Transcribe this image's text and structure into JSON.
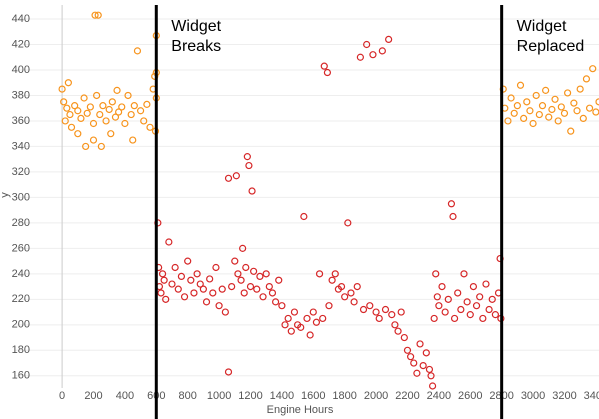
{
  "chart_data": {
    "type": "scatter",
    "x_label": "Engine Hours",
    "y_label": "y",
    "xlim": [
      -300,
      3420
    ],
    "ylim": [
      141,
      451
    ],
    "xticks": [
      0,
      200,
      400,
      600,
      800,
      1000,
      1200,
      1400,
      1600,
      1800,
      2000,
      2200,
      2400,
      2600,
      2800,
      3000,
      3200,
      3400
    ],
    "yticks": [
      160,
      180,
      200,
      220,
      240,
      260,
      280,
      300,
      320,
      340,
      360,
      380,
      400,
      420,
      440
    ],
    "grid": true,
    "annotations": [
      {
        "x": 600,
        "text": [
          "Widget",
          "Breaks"
        ]
      },
      {
        "x": 2800,
        "text": [
          "Widget",
          "Replaced"
        ]
      }
    ],
    "series": [
      {
        "color": "#f7941d",
        "x": [
          0,
          10,
          20,
          30,
          40,
          50,
          60,
          80,
          100,
          100,
          120,
          140,
          150,
          160,
          180,
          200,
          200,
          210,
          220,
          230,
          240,
          250,
          260,
          280,
          300,
          310,
          320,
          340,
          350,
          360,
          380,
          400,
          420,
          440,
          450,
          460,
          480,
          500,
          520,
          540,
          560,
          580,
          590,
          600,
          600,
          600,
          595,
          2810,
          2820,
          2840,
          2860,
          2880,
          2900,
          2920,
          2940,
          2960,
          2980,
          3000,
          3020,
          3040,
          3060,
          3080,
          3100,
          3120,
          3140,
          3160,
          3180,
          3200,
          3220,
          3240,
          3260,
          3280,
          3300,
          3320,
          3340,
          3360,
          3380,
          3400,
          3420
        ],
        "values": [
          385,
          375,
          360,
          370,
          390,
          365,
          355,
          372,
          368,
          350,
          362,
          378,
          340,
          366,
          371,
          358,
          345,
          443,
          380,
          443,
          365,
          340,
          372,
          360,
          369,
          350,
          375,
          363,
          384,
          367,
          371,
          358,
          380,
          365,
          345,
          372,
          415,
          368,
          360,
          373,
          355,
          385,
          395,
          427,
          398,
          378,
          352,
          385,
          370,
          360,
          378,
          366,
          372,
          388,
          362,
          375,
          368,
          358,
          380,
          365,
          372,
          384,
          363,
          369,
          377,
          360,
          371,
          366,
          382,
          352,
          374,
          368,
          385,
          362,
          393,
          370,
          401,
          367,
          375
        ]
      },
      {
        "color": "#d62728",
        "x": [
          610,
          615,
          620,
          630,
          640,
          650,
          660,
          680,
          700,
          720,
          740,
          760,
          780,
          800,
          820,
          840,
          860,
          880,
          900,
          920,
          940,
          960,
          980,
          1000,
          1020,
          1040,
          1060,
          1060,
          1080,
          1100,
          1110,
          1120,
          1140,
          1150,
          1160,
          1170,
          1180,
          1190,
          1200,
          1210,
          1220,
          1240,
          1260,
          1280,
          1300,
          1320,
          1340,
          1360,
          1380,
          1400,
          1420,
          1440,
          1460,
          1480,
          1500,
          1520,
          1540,
          1560,
          1580,
          1600,
          1620,
          1640,
          1660,
          1670,
          1690,
          1700,
          1720,
          1740,
          1760,
          1780,
          1800,
          1820,
          1840,
          1860,
          1880,
          1900,
          1920,
          1940,
          1960,
          1980,
          2000,
          2020,
          2040,
          2060,
          2080,
          2100,
          2120,
          2140,
          2160,
          2180,
          2200,
          2220,
          2240,
          2260,
          2280,
          2300,
          2320,
          2340,
          2350,
          2360,
          2370,
          2380,
          2390,
          2400,
          2420,
          2440,
          2460,
          2480,
          2490,
          2500,
          2520,
          2540,
          2560,
          2580,
          2600,
          2620,
          2640,
          2660,
          2680,
          2700,
          2720,
          2740,
          2760,
          2780,
          2790,
          2795
        ],
        "values": [
          280,
          245,
          230,
          225,
          240,
          235,
          220,
          265,
          232,
          245,
          228,
          238,
          222,
          250,
          235,
          225,
          240,
          232,
          228,
          218,
          236,
          225,
          245,
          215,
          228,
          210,
          163,
          315,
          230,
          250,
          317,
          240,
          235,
          260,
          225,
          245,
          332,
          325,
          230,
          305,
          242,
          228,
          238,
          222,
          240,
          230,
          225,
          218,
          235,
          215,
          200,
          205,
          195,
          210,
          200,
          198,
          285,
          205,
          192,
          210,
          202,
          240,
          205,
          403,
          398,
          215,
          235,
          240,
          228,
          230,
          222,
          280,
          225,
          218,
          230,
          410,
          212,
          420,
          215,
          412,
          210,
          205,
          415,
          212,
          424,
          208,
          200,
          195,
          210,
          190,
          180,
          175,
          170,
          162,
          185,
          168,
          178,
          165,
          160,
          152,
          205,
          240,
          222,
          215,
          230,
          210,
          220,
          295,
          285,
          205,
          225,
          212,
          240,
          218,
          208,
          230,
          215,
          222,
          205,
          232,
          212,
          220,
          208,
          225,
          252,
          205
        ]
      }
    ]
  }
}
